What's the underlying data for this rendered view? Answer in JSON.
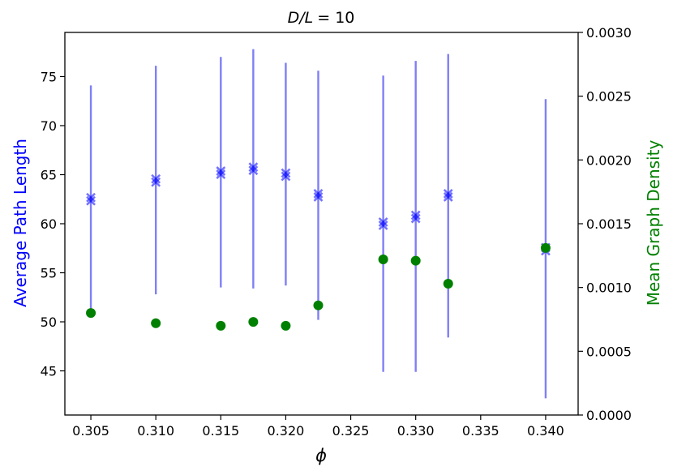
{
  "chart_data": {
    "type": "scatter",
    "title_prefix": "D/L",
    "title_suffix": "= 10",
    "xlabel": "ϕ",
    "ylabel_left": "Average Path Length",
    "ylabel_right": "Mean Graph Density",
    "xlim": [
      0.303,
      0.3425
    ],
    "ylim_left": [
      40.5,
      79.5
    ],
    "ylim_right": [
      0.0,
      0.003
    ],
    "x_ticks": [
      "0.305",
      "0.310",
      "0.315",
      "0.320",
      "0.325",
      "0.330",
      "0.335",
      "0.340"
    ],
    "y_left_ticks": [
      "45",
      "50",
      "55",
      "60",
      "65",
      "70",
      "75"
    ],
    "y_right_ticks": [
      "0.0000",
      "0.0005",
      "0.0010",
      "0.0015",
      "0.0020",
      "0.0025",
      "0.0030"
    ],
    "colors": {
      "path_length": "#0000ff",
      "errorbar": "#7f7ff7",
      "density": "#008000"
    },
    "series": [
      {
        "axis": "left",
        "marker": "x",
        "x": [
          0.305,
          0.31,
          0.315,
          0.3175,
          0.32,
          0.3225,
          0.3275,
          0.33,
          0.3325,
          0.34
        ],
        "y": [
          62.5,
          64.4,
          65.2,
          65.6,
          65.0,
          62.9,
          60.0,
          60.7,
          62.9,
          57.4
        ],
        "yerr_low": [
          51.0,
          52.8,
          53.5,
          53.4,
          53.7,
          50.2,
          44.9,
          44.9,
          48.4,
          42.2
        ],
        "yerr_high": [
          74.1,
          76.1,
          77.0,
          77.8,
          76.4,
          75.6,
          75.1,
          76.6,
          77.3,
          72.7
        ]
      },
      {
        "axis": "right",
        "marker": "o",
        "x": [
          0.305,
          0.31,
          0.315,
          0.3175,
          0.32,
          0.3225,
          0.3275,
          0.33,
          0.3325,
          0.34
        ],
        "y": [
          0.0008,
          0.00072,
          0.0007,
          0.00073,
          0.0007,
          0.00086,
          0.00122,
          0.00121,
          0.00103,
          0.00131
        ]
      }
    ]
  }
}
